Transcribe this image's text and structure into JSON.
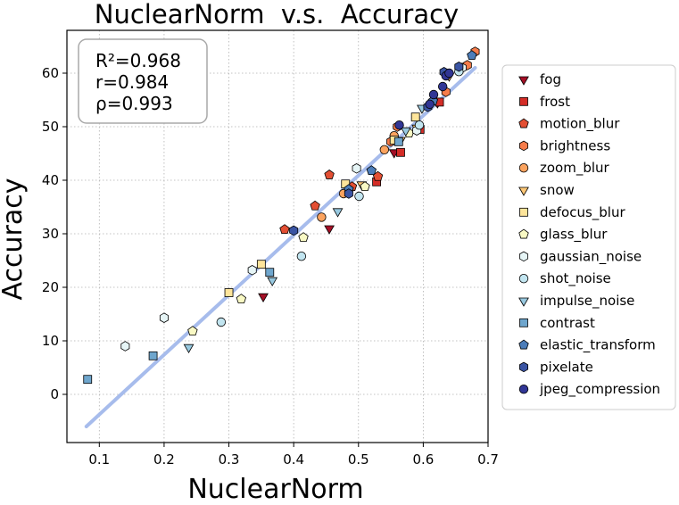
{
  "chart_data": {
    "type": "scatter",
    "title": "NuclearNorm  v.s.  Accuracy",
    "xlabel": "NuclearNorm",
    "ylabel": "Accuracy",
    "xlim": [
      0.05,
      0.7
    ],
    "ylim": [
      -9,
      68
    ],
    "xticks": [
      0.1,
      0.2,
      0.3,
      0.4,
      0.5,
      0.6,
      0.7
    ],
    "xtick_labels": [
      "0.1",
      "0.2",
      "0.3",
      "0.4",
      "0.5",
      "0.6",
      "0.7"
    ],
    "yticks": [
      0,
      10,
      20,
      30,
      40,
      50,
      60
    ],
    "ytick_labels": [
      "0",
      "10",
      "20",
      "30",
      "40",
      "50",
      "60"
    ],
    "grid": true,
    "legend_position": "outside-right",
    "stats": [
      "R²=0.968",
      "r=0.984",
      "ρ=0.993"
    ],
    "fit_line": {
      "color": "#a3b9eb",
      "x": [
        0.08,
        0.68
      ],
      "y": [
        -6,
        61
      ]
    },
    "series": [
      {
        "name": "fog",
        "marker": "triangle-down",
        "color": "#a50f26",
        "points": [
          [
            0.353,
            18.3
          ],
          [
            0.455,
            31
          ],
          [
            0.555,
            45.2
          ],
          [
            0.622,
            54.5
          ]
        ]
      },
      {
        "name": "frost",
        "marker": "square",
        "color": "#d42d27",
        "points": [
          [
            0.528,
            39.7
          ],
          [
            0.565,
            45.2
          ],
          [
            0.625,
            54.6
          ],
          [
            0.595,
            49.5
          ]
        ]
      },
      {
        "name": "motion_blur",
        "marker": "pentagon",
        "color": "#e34f33",
        "points": [
          [
            0.386,
            30.8
          ],
          [
            0.433,
            35.2
          ],
          [
            0.49,
            38.8
          ],
          [
            0.53,
            40.7
          ],
          [
            0.455,
            41
          ]
        ]
      },
      {
        "name": "brightness",
        "marker": "hexagon",
        "color": "#f67c4a",
        "points": [
          [
            0.68,
            64
          ],
          [
            0.668,
            61.5
          ],
          [
            0.635,
            56.5
          ],
          [
            0.55,
            47.2
          ],
          [
            0.56,
            50
          ]
        ]
      },
      {
        "name": "zoom_blur",
        "marker": "circle",
        "color": "#fba35f",
        "points": [
          [
            0.443,
            33.1
          ],
          [
            0.477,
            37.5
          ],
          [
            0.54,
            45.7
          ],
          [
            0.555,
            48.3
          ]
        ]
      },
      {
        "name": "snow",
        "marker": "triangle-down",
        "color": "#fdc776",
        "points": [
          [
            0.505,
            39.2
          ],
          [
            0.565,
            47.5
          ],
          [
            0.59,
            49.8
          ],
          [
            0.64,
            59.5
          ]
        ]
      },
      {
        "name": "defocus_blur",
        "marker": "square",
        "color": "#fee59b",
        "points": [
          [
            0.3,
            19
          ],
          [
            0.35,
            24.3
          ],
          [
            0.48,
            39.3
          ],
          [
            0.555,
            47.5
          ],
          [
            0.588,
            51.8
          ]
        ]
      },
      {
        "name": "glass_blur",
        "marker": "pentagon",
        "color": "#f9f9c4",
        "points": [
          [
            0.244,
            11.8
          ],
          [
            0.319,
            17.8
          ],
          [
            0.415,
            29.3
          ],
          [
            0.51,
            38.8
          ],
          [
            0.578,
            48.8
          ]
        ]
      },
      {
        "name": "gaussian_noise",
        "marker": "hexagon",
        "color": "#e6f5f6",
        "points": [
          [
            0.14,
            9
          ],
          [
            0.2,
            14.3
          ],
          [
            0.336,
            23.2
          ],
          [
            0.497,
            42.2
          ],
          [
            0.59,
            49.3
          ],
          [
            0.66,
            61
          ]
        ]
      },
      {
        "name": "shot_noise",
        "marker": "circle",
        "color": "#c2e5f0",
        "points": [
          [
            0.288,
            13.5
          ],
          [
            0.412,
            25.8
          ],
          [
            0.501,
            37
          ],
          [
            0.594,
            50.3
          ],
          [
            0.655,
            60.3
          ]
        ]
      },
      {
        "name": "impulse_noise",
        "marker": "triangle-down",
        "color": "#98c9e0",
        "points": [
          [
            0.238,
            8.8
          ],
          [
            0.367,
            21.3
          ],
          [
            0.468,
            34.2
          ],
          [
            0.573,
            49.3
          ],
          [
            0.598,
            53.5
          ]
        ]
      },
      {
        "name": "contrast",
        "marker": "square",
        "color": "#6fa6cd",
        "points": [
          [
            0.082,
            2.8
          ],
          [
            0.183,
            7.2
          ],
          [
            0.363,
            22.8
          ],
          [
            0.562,
            47.2
          ]
        ]
      },
      {
        "name": "elastic_transform",
        "marker": "pentagon",
        "color": "#4c7db9",
        "points": [
          [
            0.675,
            63.3
          ],
          [
            0.615,
            54.8
          ],
          [
            0.485,
            38.3
          ],
          [
            0.52,
            41.8
          ]
        ]
      },
      {
        "name": "pixelate",
        "marker": "hexagon",
        "color": "#3a54a3",
        "points": [
          [
            0.4,
            30.6
          ],
          [
            0.485,
            37.5
          ],
          [
            0.607,
            53.7
          ],
          [
            0.632,
            60.2
          ],
          [
            0.655,
            61.2
          ]
        ]
      },
      {
        "name": "jpeg_compression",
        "marker": "circle",
        "color": "#313695",
        "points": [
          [
            0.563,
            50.3
          ],
          [
            0.61,
            54.2
          ],
          [
            0.616,
            56
          ],
          [
            0.63,
            57.5
          ],
          [
            0.635,
            59.5
          ],
          [
            0.64,
            60
          ]
        ]
      }
    ]
  }
}
